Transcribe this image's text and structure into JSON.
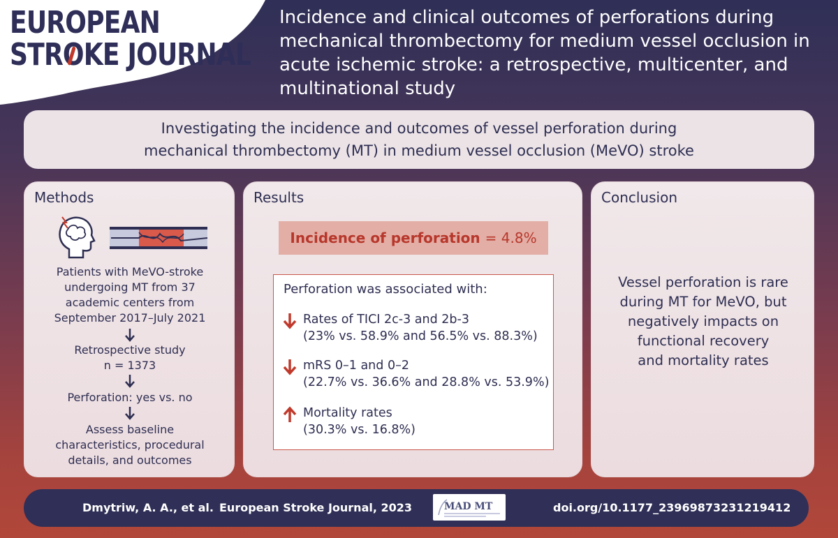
{
  "logo": {
    "line1": "EUROPEAN",
    "line2_a": "STR",
    "line2_o": "O",
    "line2_b": "KE JOURNAL"
  },
  "title": "Incidence and clinical outcomes of perforations during mechanical thrombectomy for medium vessel occlusion in acute ischemic stroke: a retrospective, multicenter, and multinational study",
  "banner": {
    "line1": "Investigating the incidence and outcomes of vessel perforation during",
    "line2": "mechanical thrombectomy (MT) in medium vessel occlusion (MeVO) stroke"
  },
  "methods": {
    "heading": "Methods",
    "step1": [
      "Patients with MeVO-stroke",
      "undergoing MT from 37",
      "academic centers from",
      "September 2017–July 2021"
    ],
    "step2": [
      "Retrospective study",
      "n = 1373"
    ],
    "step3": [
      "Perforation: yes vs. no"
    ],
    "step4": [
      "Assess baseline",
      "characteristics, procedural",
      "details, and outcomes"
    ]
  },
  "results": {
    "heading": "Results",
    "incidence_label": "Incidence of perforation",
    "incidence_eq": "= 4.8%",
    "assoc_title": "Perforation was associated with:",
    "items": [
      {
        "direction": "down",
        "label": "Rates of TICI 2c-3 and 2b-3",
        "detail": "(23% vs. 58.9% and 56.5% vs. 88.3%)"
      },
      {
        "direction": "down",
        "label": "mRS 0–1 and 0–2",
        "detail": "(22.7% vs. 36.6% and 28.8% vs. 53.9%)"
      },
      {
        "direction": "up",
        "label": "Mortality rates",
        "detail": "(30.3% vs. 16.8%)"
      }
    ]
  },
  "conclusion": {
    "heading": "Conclusion",
    "lines": [
      "Vessel perforation is rare",
      "during MT for MeVO, but",
      "negatively impacts on",
      "functional recovery",
      "and mortality rates"
    ]
  },
  "footer": {
    "authors": "Dmytriw, A. A., et al.",
    "journal": "European Stroke Journal, 2023",
    "logo_text": "MAD MT",
    "doi": "doi.org/10.1177_23969873231219412"
  },
  "colors": {
    "navy": "#2f2f57",
    "red": "#b7372c",
    "panel": "#ecdcdf"
  }
}
